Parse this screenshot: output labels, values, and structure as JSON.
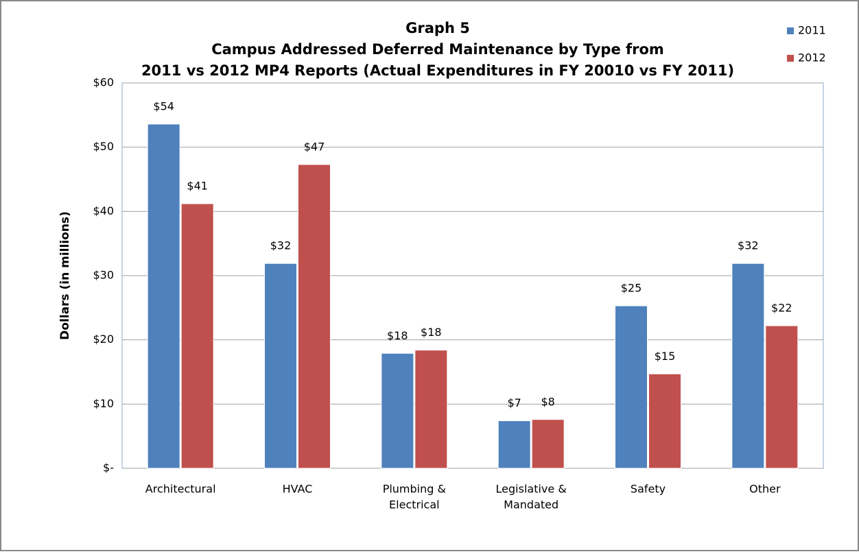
{
  "chart_data": {
    "type": "bar",
    "title": [
      "Graph 5",
      "Campus Addressed Deferred Maintenance by Type from",
      "2011 vs 2012 MP4 Reports (Actual Expenditures in FY 20010 vs FY 2011)"
    ],
    "y_label": "Dollars (in millions)",
    "categories": [
      [
        "Architectural"
      ],
      [
        "HVAC"
      ],
      [
        "Plumbing &",
        "Electrical"
      ],
      [
        "Legislative &",
        "Mandated"
      ],
      [
        "Safety"
      ],
      [
        "Other"
      ]
    ],
    "series": [
      {
        "name": "2011",
        "color": "#4f81bd",
        "values": [
          53.6,
          31.9,
          17.9,
          7.4,
          25.3,
          31.9
        ],
        "value_labels": [
          "$54",
          "$32",
          "$18",
          "$7",
          "$25",
          "$32"
        ]
      },
      {
        "name": "2012",
        "color": "#c0504d",
        "values": [
          41.2,
          47.3,
          18.4,
          7.6,
          14.7,
          22.2
        ],
        "value_labels": [
          "$41",
          "$47",
          "$18",
          "$8",
          "$15",
          "$22"
        ]
      }
    ],
    "ylim": [
      0,
      60
    ],
    "yticks": [
      {
        "value": 0,
        "label": "$-"
      },
      {
        "value": 10,
        "label": "$10"
      },
      {
        "value": 20,
        "label": "$20"
      },
      {
        "value": 30,
        "label": "$30"
      },
      {
        "value": 40,
        "label": "$40"
      },
      {
        "value": 50,
        "label": "$50"
      },
      {
        "value": 60,
        "label": "$60"
      }
    ],
    "grid": true,
    "legend": "top-right"
  }
}
